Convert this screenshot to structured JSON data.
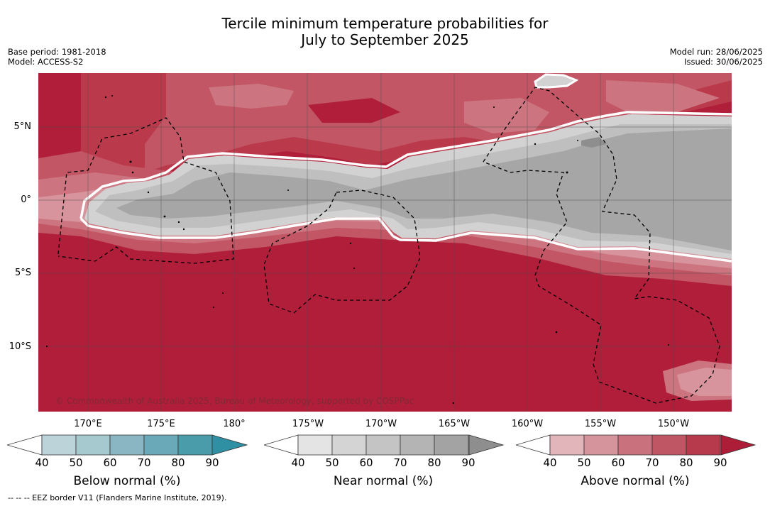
{
  "title_line1": "Tercile minimum temperature probabilities for",
  "title_line2": "July to September 2025",
  "base_period": "Base period: 1981-2018",
  "model": "Model: ACCESS-S2",
  "model_run": "Model run: 28/06/2025",
  "issued": "Issued: 30/06/2025",
  "credit": "© Commonwealth of Australia 2025, Bureau of Meteorology, supported by COSPPac",
  "eez_note": "--  --  -- EEZ border V11 (Flanders Marine Institute, 2019).",
  "lat_labels": [
    "5°N",
    "0°",
    "5°S",
    "10°S"
  ],
  "lon_labels": [
    "170°E",
    "175°E",
    "180°",
    "175°W",
    "170°W",
    "165°W",
    "160°W",
    "155°W",
    "150°W"
  ],
  "colorbars": {
    "below": {
      "label": "Below normal (%)",
      "ticks": [
        "40",
        "50",
        "60",
        "70",
        "80",
        "90"
      ],
      "colors": [
        "#bcd3da",
        "#a6c8cf",
        "#89b6c2",
        "#6aaab8",
        "#4a9cab",
        "#2f8fa3"
      ]
    },
    "near": {
      "label": "Near normal (%)",
      "ticks": [
        "40",
        "50",
        "60",
        "70",
        "80",
        "90"
      ],
      "colors": [
        "#e4e4e4",
        "#d4d4d4",
        "#c4c4c4",
        "#b4b4b4",
        "#a3a3a3",
        "#8e8e8e"
      ]
    },
    "above": {
      "label": "Above normal (%)",
      "ticks": [
        "40",
        "50",
        "60",
        "70",
        "80",
        "90"
      ],
      "colors": [
        "#e2b5bb",
        "#d5949c",
        "#c9727d",
        "#bf5663",
        "#b63a4b",
        "#ad1d37"
      ]
    }
  },
  "map_colors": {
    "above_90": "#b01e3a",
    "above_80": "#ba3a4c",
    "above_70": "#c25664",
    "above_60": "#cc7580",
    "above_50": "#d7949c",
    "near_50": "#d2d2d2",
    "near_60": "#bfbfbf",
    "near_70": "#a6a6a6"
  }
}
